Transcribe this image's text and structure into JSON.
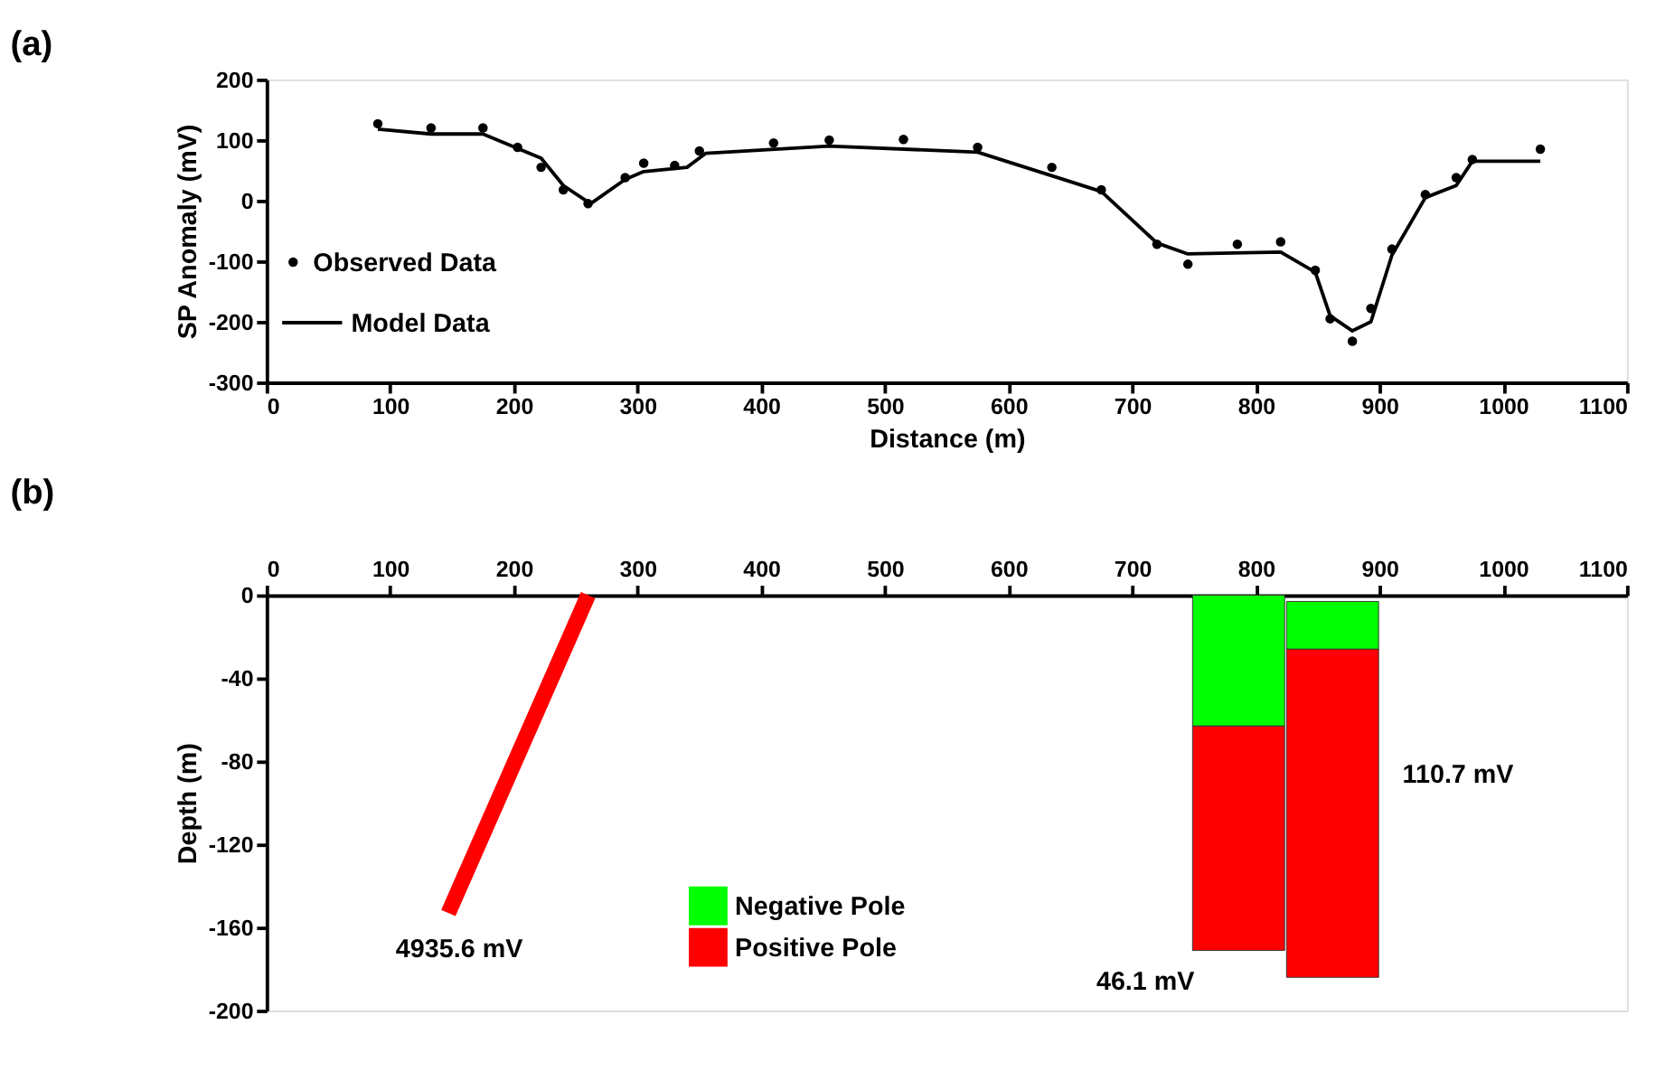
{
  "chart_data": [
    {
      "type": "scatter",
      "title": "(a)",
      "xlabel": "Distance (m)",
      "ylabel": "SP Anomaly (mV)",
      "xlim": [
        0,
        1100
      ],
      "xticks": [
        0,
        100,
        200,
        300,
        400,
        500,
        600,
        700,
        800,
        900,
        1000,
        1100
      ],
      "ylim": [
        -300,
        200
      ],
      "yticks": [
        -300,
        -200,
        -100,
        0,
        100,
        200
      ],
      "grid": false,
      "legend": "bottom left",
      "series": [
        {
          "name": "Observed Data",
          "type": "scatter",
          "marker": "circle",
          "color": "#000000",
          "x": [
            90,
            133,
            175,
            203,
            222,
            240,
            260,
            290,
            305,
            330,
            350,
            410,
            455,
            515,
            575,
            635,
            675,
            720,
            745,
            785,
            820,
            848,
            860,
            878,
            893,
            910,
            937,
            962,
            975,
            1030
          ],
          "values": [
            127,
            120,
            120,
            88,
            55,
            18,
            -5,
            38,
            62,
            58,
            82,
            95,
            100,
            101,
            88,
            55,
            18,
            -72,
            -105,
            -72,
            -68,
            -115,
            -195,
            -232,
            -178,
            -80,
            10,
            38,
            68,
            85
          ]
        },
        {
          "name": "Model Data",
          "type": "line",
          "marker": "none",
          "color": "#000000",
          "line_style": "solid",
          "x": [
            90,
            133,
            175,
            222,
            240,
            262,
            290,
            305,
            340,
            355,
            455,
            575,
            675,
            720,
            745,
            820,
            848,
            860,
            878,
            893,
            910,
            937,
            962,
            975,
            1030
          ],
          "values": [
            118,
            110,
            110,
            70,
            25,
            -5,
            35,
            48,
            55,
            78,
            90,
            80,
            15,
            -70,
            -88,
            -85,
            -118,
            -190,
            -215,
            -200,
            -90,
            5,
            25,
            65,
            65
          ]
        }
      ]
    },
    {
      "type": "bar",
      "title": "(b)",
      "ylabel": "Depth (m)",
      "xlim": [
        0,
        1100
      ],
      "xticks": [
        0,
        100,
        200,
        300,
        400,
        500,
        600,
        700,
        800,
        900,
        1000,
        1100
      ],
      "ylim": [
        -200,
        0
      ],
      "yticks": [
        -200,
        -160,
        -120,
        -80,
        -40,
        0
      ],
      "grid": false,
      "legend": "bottom",
      "series": [
        {
          "name": "Negative Pole",
          "color": "#00ff00",
          "x": [
            786,
            862
          ],
          "base": [
            0,
            -3
          ],
          "values": [
            -63,
            -23
          ]
        },
        {
          "name": "Positive Pole",
          "color": "#ff0000",
          "x": [
            786,
            862
          ],
          "base": [
            -63,
            -26
          ],
          "values": [
            -108,
            -158
          ]
        },
        {
          "type": "line",
          "color": "#ff0000",
          "x": [
            147,
            260
          ],
          "values": [
            -153,
            0
          ]
        }
      ],
      "annotations": [
        "4935.6 mV",
        "46.1 mV",
        "110.7 mV"
      ]
    }
  ]
}
